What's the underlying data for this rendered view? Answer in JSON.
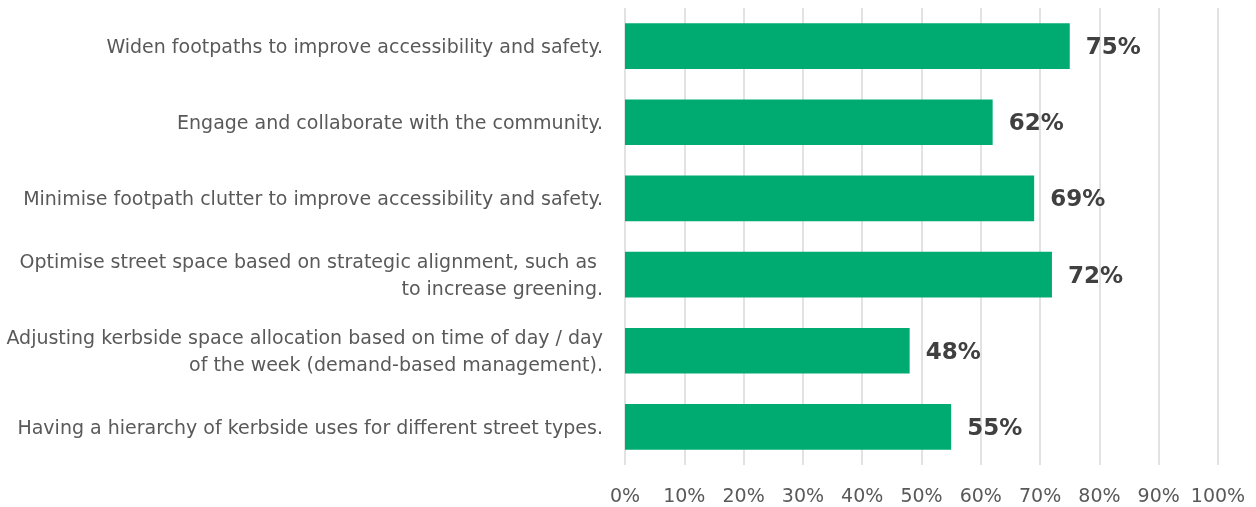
{
  "chart_data": {
    "type": "bar",
    "orientation": "horizontal",
    "categories": [
      "Widen footpaths to improve accessibility and safety.",
      "Engage and collaborate with the community.",
      "Minimise footpath clutter to improve accessibility and safety.",
      "Optimise street space based on strategic alignment, such as to increase greening.",
      "Adjusting kerbside space allocation based on time of day / day of the week (demand-based management).",
      "Having a hierarchy of kerbside uses for different street types."
    ],
    "values": [
      75,
      62,
      69,
      72,
      48,
      55
    ],
    "value_labels": [
      "75%",
      "62%",
      "69%",
      "72%",
      "48%",
      "55%"
    ],
    "color": "#00ab72",
    "xlim": [
      0,
      100
    ],
    "xticks": [
      {
        "value": 0,
        "label": "0%"
      },
      {
        "value": 10,
        "label": "10%"
      },
      {
        "value": 20,
        "label": "20%"
      },
      {
        "value": 30,
        "label": "30%"
      },
      {
        "value": 40,
        "label": "40%"
      },
      {
        "value": 50,
        "label": "50%"
      },
      {
        "value": 60,
        "label": "60%"
      },
      {
        "value": 70,
        "label": "70%"
      },
      {
        "value": 80,
        "label": "80%"
      },
      {
        "value": 90,
        "label": "90%"
      },
      {
        "value": 100,
        "label": "100%"
      }
    ],
    "grid": "x"
  }
}
